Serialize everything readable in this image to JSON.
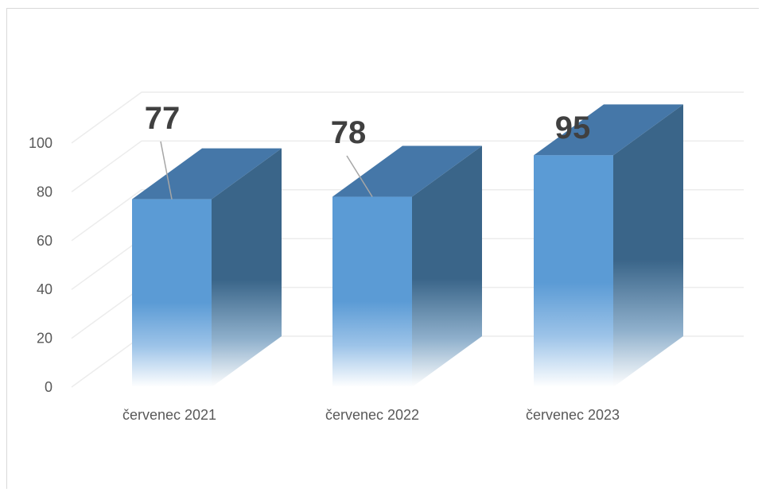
{
  "chart_data": {
    "type": "bar",
    "style": "3d-column",
    "categories": [
      "červenec 2021",
      "červenec 2022",
      "červenec 2023"
    ],
    "values": [
      77,
      78,
      95
    ],
    "data_labels": [
      "77",
      "78",
      "95"
    ],
    "ylim": [
      0,
      100
    ],
    "yticks": [
      "0",
      "20",
      "40",
      "60",
      "80",
      "100"
    ],
    "title": "",
    "xlabel": "",
    "ylabel": "",
    "grid": true,
    "legend": "none",
    "colors": {
      "front": "#5b9bd5",
      "top": "#4577a8",
      "side": "#3a6589",
      "grid": "#ececec",
      "leader": "#a6a6a6"
    }
  }
}
